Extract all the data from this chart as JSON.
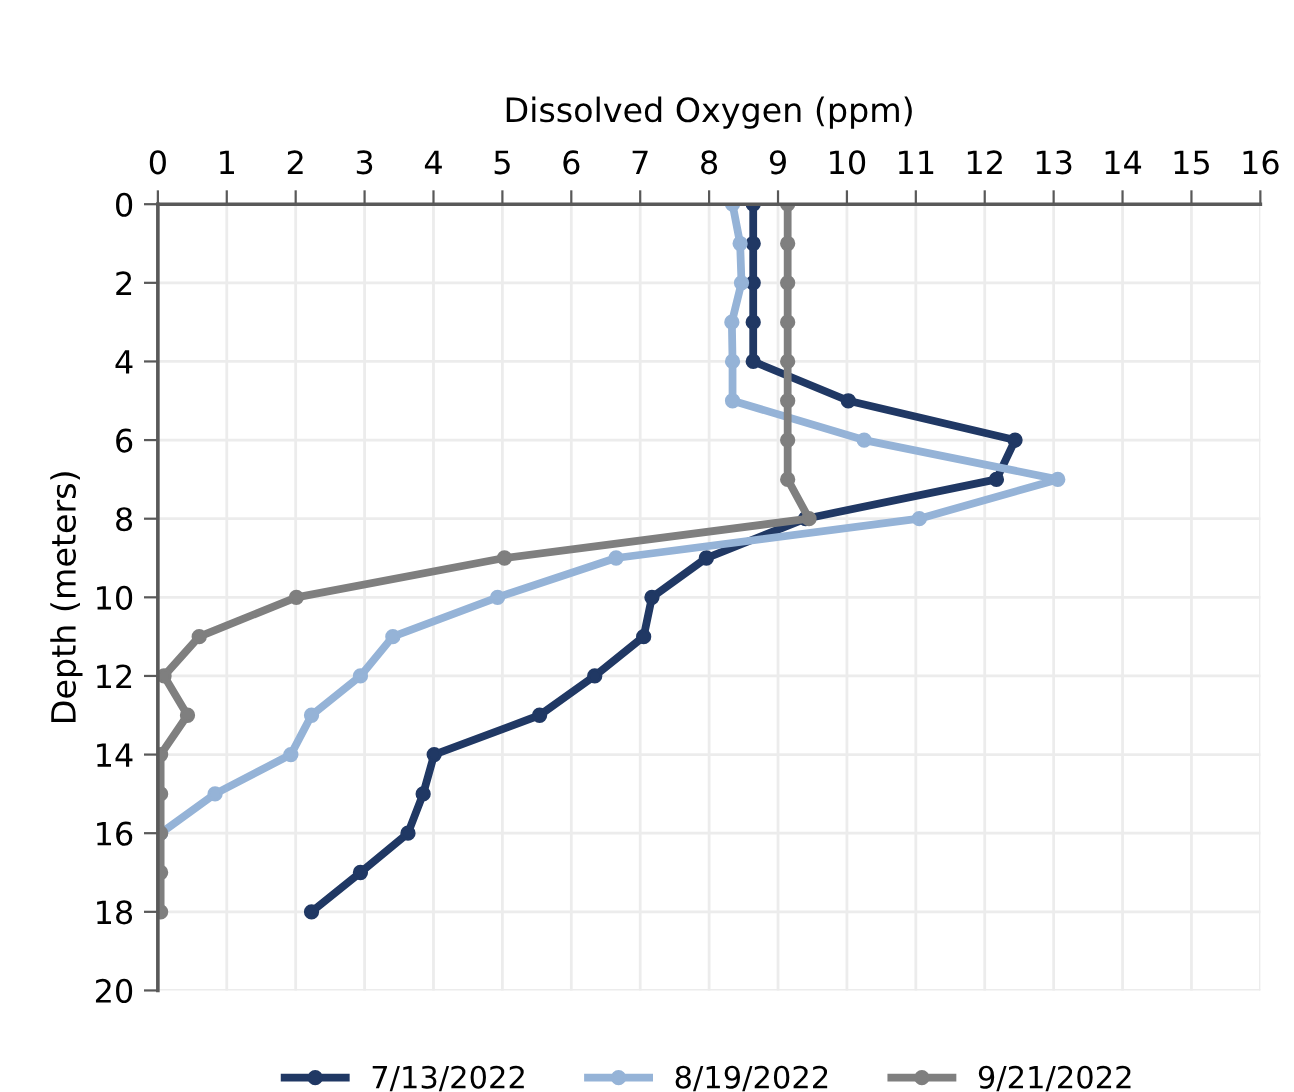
{
  "chart_data": {
    "type": "line",
    "xlabel": "Dissolved Oxygen (ppm)",
    "ylabel": "Depth (meters)",
    "xlim": [
      0,
      16
    ],
    "xticks": [
      0,
      1,
      2,
      3,
      4,
      5,
      6,
      7,
      8,
      9,
      10,
      11,
      12,
      13,
      14,
      15,
      16
    ],
    "ylim": [
      20,
      0
    ],
    "yticks": [
      0,
      2,
      4,
      6,
      8,
      10,
      12,
      14,
      16,
      18,
      20
    ],
    "grid": true,
    "legend": "bottom",
    "marker": "circle",
    "line_style": "solid",
    "series": [
      {
        "name": "7/13/2022",
        "color": "#203864",
        "x": [
          8.64,
          8.64,
          8.64,
          8.64,
          8.64,
          10.02,
          12.44,
          12.17,
          9.4,
          7.96,
          7.17,
          7.05,
          6.34,
          5.54,
          4.01,
          3.85,
          3.63,
          2.94,
          2.23
        ],
        "values": [
          0,
          1,
          2,
          3,
          4,
          5,
          6,
          7,
          8,
          9,
          10,
          11,
          12,
          13,
          14,
          15,
          16,
          17,
          18
        ]
      },
      {
        "name": "8/19/2022",
        "color": "#95b3d7",
        "x": [
          8.34,
          8.45,
          8.47,
          8.33,
          8.34,
          8.34,
          10.25,
          13.06,
          11.05,
          6.65,
          4.93,
          3.41,
          2.94,
          2.23,
          1.93,
          0.83,
          0.04
        ],
        "values": [
          0,
          1,
          2,
          3,
          4,
          5,
          6,
          7,
          8,
          9,
          10,
          11,
          12,
          13,
          14,
          15,
          16
        ]
      },
      {
        "name": "9/21/2022",
        "color": "#7f7f7f",
        "x": [
          9.14,
          9.14,
          9.14,
          9.14,
          9.14,
          9.14,
          9.14,
          9.14,
          9.45,
          5.03,
          2.01,
          0.6,
          0.09,
          0.43,
          0.04,
          0.04,
          0.04,
          0.04,
          0.04
        ],
        "values": [
          0,
          1,
          2,
          3,
          4,
          5,
          6,
          7,
          8,
          9,
          10,
          11,
          12,
          13,
          14,
          15,
          16,
          17,
          18
        ]
      }
    ]
  }
}
